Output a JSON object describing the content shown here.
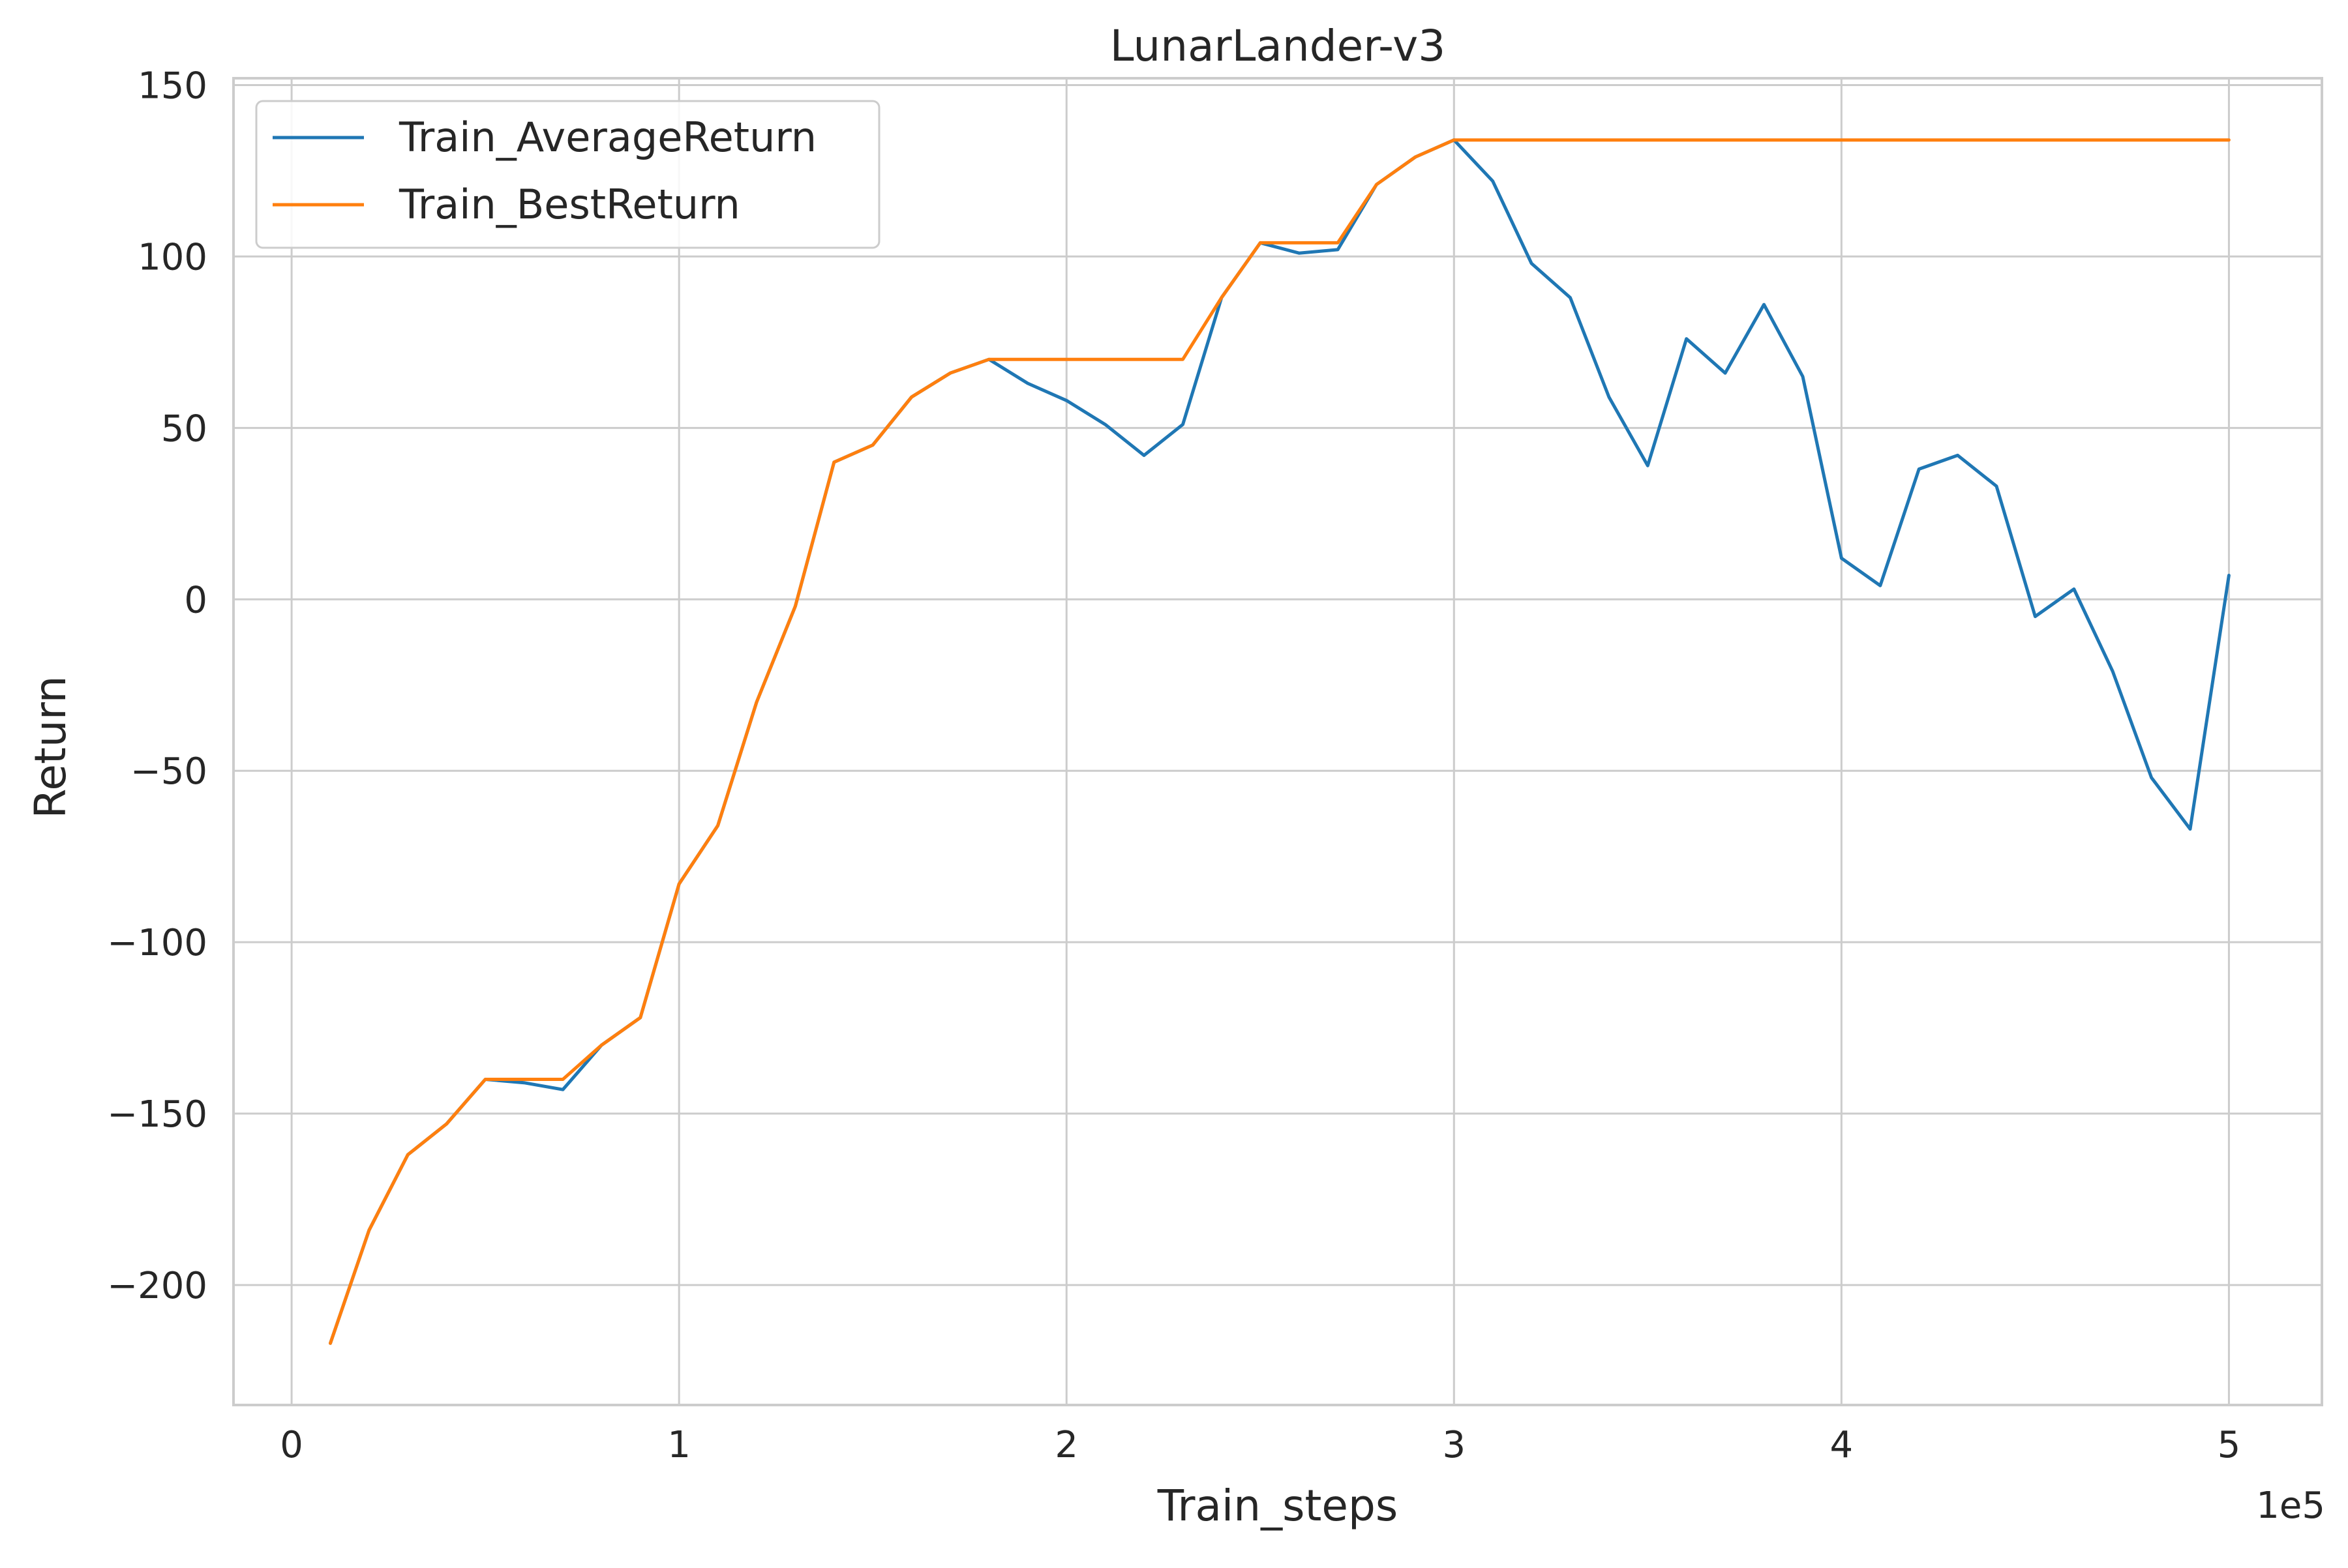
{
  "chart_data": {
    "type": "line",
    "title": "LunarLander-v3",
    "xlabel": "Train_steps",
    "ylabel": "Return",
    "x_offset_label": "1e5",
    "xlim": [
      -0.15,
      5.24
    ],
    "ylim": [
      -235,
      152
    ],
    "x_ticks": [
      0,
      1,
      2,
      3,
      4,
      5
    ],
    "x_tick_labels": [
      "0",
      "1",
      "2",
      "3",
      "4",
      "5"
    ],
    "y_ticks": [
      -200,
      -150,
      -100,
      -50,
      0,
      50,
      100,
      150
    ],
    "y_tick_labels": [
      "−200",
      "−150",
      "−100",
      "−50",
      "0",
      "50",
      "100",
      "150"
    ],
    "grid": true,
    "legend_position": "upper-left",
    "colors": {
      "avg": "#1f77b4",
      "best": "#ff7f0e",
      "grid": "#cccccc",
      "spine": "#cccccc",
      "background": "#ffffff"
    },
    "x": [
      0.1,
      0.2,
      0.3,
      0.4,
      0.5,
      0.6,
      0.7,
      0.8,
      0.9,
      1.0,
      1.1,
      1.2,
      1.3,
      1.4,
      1.5,
      1.6,
      1.7,
      1.8,
      1.9,
      2.0,
      2.1,
      2.2,
      2.3,
      2.4,
      2.5,
      2.6,
      2.7,
      2.8,
      2.9,
      3.0,
      3.1,
      3.2,
      3.3,
      3.4,
      3.5,
      3.6,
      3.7,
      3.8,
      3.9,
      4.0,
      4.1,
      4.2,
      4.3,
      4.4,
      4.5,
      4.6,
      4.7,
      4.8,
      4.9,
      5.0
    ],
    "series": [
      {
        "name": "Train_AverageReturn",
        "color": "#1f77b4",
        "values": [
          -217,
          -184,
          -162,
          -153,
          -140,
          -141,
          -143,
          -130,
          -122,
          -83,
          -66,
          -30,
          -2,
          40,
          45,
          59,
          66,
          70,
          63,
          58,
          51,
          42,
          51,
          88,
          104,
          101,
          102,
          121,
          129,
          134,
          122,
          98,
          88,
          59,
          39,
          76,
          66,
          86,
          65,
          12,
          4,
          38,
          42,
          33,
          -5,
          3,
          -21,
          -52,
          -67,
          7
        ]
      },
      {
        "name": "Train_BestReturn",
        "color": "#ff7f0e",
        "values": [
          -217,
          -184,
          -162,
          -153,
          -140,
          -140,
          -140,
          -130,
          -122,
          -83,
          -66,
          -30,
          -2,
          40,
          45,
          59,
          66,
          70,
          70,
          70,
          70,
          70,
          70,
          88,
          104,
          104,
          104,
          121,
          129,
          134,
          134,
          134,
          134,
          134,
          134,
          134,
          134,
          134,
          134,
          134,
          134,
          134,
          134,
          134,
          134,
          134,
          134,
          134,
          134,
          134
        ]
      }
    ]
  }
}
